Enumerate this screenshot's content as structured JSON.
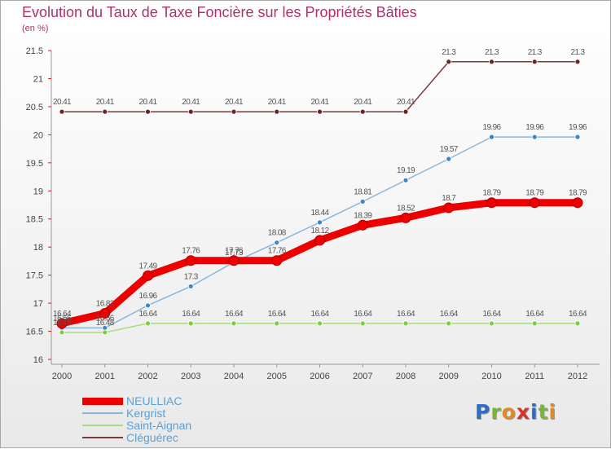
{
  "title": "Evolution du Taux de Taxe Foncière sur les Propriétés Bâties",
  "unit": "(en %)",
  "logo": {
    "text": "Proxiti",
    "colors": [
      "#2f6cc4",
      "#7bb33b",
      "#e08b1e",
      "#d6352a",
      "#2f6cc4",
      "#7bb33b",
      "#e08b1e"
    ]
  },
  "chart_data": {
    "type": "line",
    "title": "Evolution du Taux de Taxe Foncière sur les Propriétés Bâties",
    "ylabel": "(en %)",
    "xlabel": "",
    "ylim": [
      16,
      21.5
    ],
    "y_ticks": [
      "16",
      "16.5",
      "17",
      "17.5",
      "18",
      "18.5",
      "19",
      "19.5",
      "20",
      "20.5",
      "21",
      "21.5"
    ],
    "categories": [
      "2000",
      "2001",
      "2002",
      "2003",
      "2004",
      "2005",
      "2006",
      "2007",
      "2008",
      "2009",
      "2010",
      "2011",
      "2012"
    ],
    "grid": false,
    "legend_position": "bottom-left",
    "series": [
      {
        "name": "NEULLIAC",
        "color": "#ee0000",
        "marker": "#ee0000",
        "values": [
          16.64,
          16.82,
          17.49,
          17.76,
          17.76,
          17.76,
          18.12,
          18.39,
          18.52,
          18.7,
          18.79,
          18.79,
          18.79
        ],
        "labels": [
          "16.64",
          "16.82",
          "17.49",
          "17.76",
          "17.76",
          "17.76",
          "18.12",
          "18.39",
          "18.52",
          "18.7",
          "18.79",
          "18.79",
          "18.79"
        ]
      },
      {
        "name": "Kergrist",
        "color": "#8ab6db",
        "marker": "#3b86c6",
        "values": [
          16.56,
          16.56,
          16.96,
          17.3,
          17.73,
          18.08,
          18.44,
          18.81,
          19.19,
          19.57,
          19.96,
          19.96,
          19.96
        ],
        "labels": [
          "16.56",
          "16.56",
          "16.96",
          "17.3",
          "17.73",
          "18.08",
          "18.44",
          "18.81",
          "19.19",
          "19.57",
          "19.96",
          "19.96",
          "19.96"
        ]
      },
      {
        "name": "Saint-Aignan",
        "color": "#a6de7a",
        "marker": "#7dcc44",
        "values": [
          16.48,
          16.48,
          16.64,
          16.64,
          16.64,
          16.64,
          16.64,
          16.64,
          16.64,
          16.64,
          16.64,
          16.64,
          16.64
        ],
        "labels": [
          "16.48",
          "16.48",
          "16.64",
          "16.64",
          "16.64",
          "16.64",
          "16.64",
          "16.64",
          "16.64",
          "16.64",
          "16.64",
          "16.64",
          "16.64"
        ]
      },
      {
        "name": "Cléguérec",
        "color": "#7a3a3a",
        "marker": "#6b2323",
        "values": [
          20.41,
          20.41,
          20.41,
          20.41,
          20.41,
          20.41,
          20.41,
          20.41,
          20.41,
          21.3,
          21.3,
          21.3,
          21.3
        ],
        "labels": [
          "20.41",
          "20.41",
          "20.41",
          "20.41",
          "20.41",
          "20.41",
          "20.41",
          "20.41",
          "20.41",
          "21.3",
          "21.3",
          "21.3",
          "21.3"
        ]
      }
    ]
  }
}
